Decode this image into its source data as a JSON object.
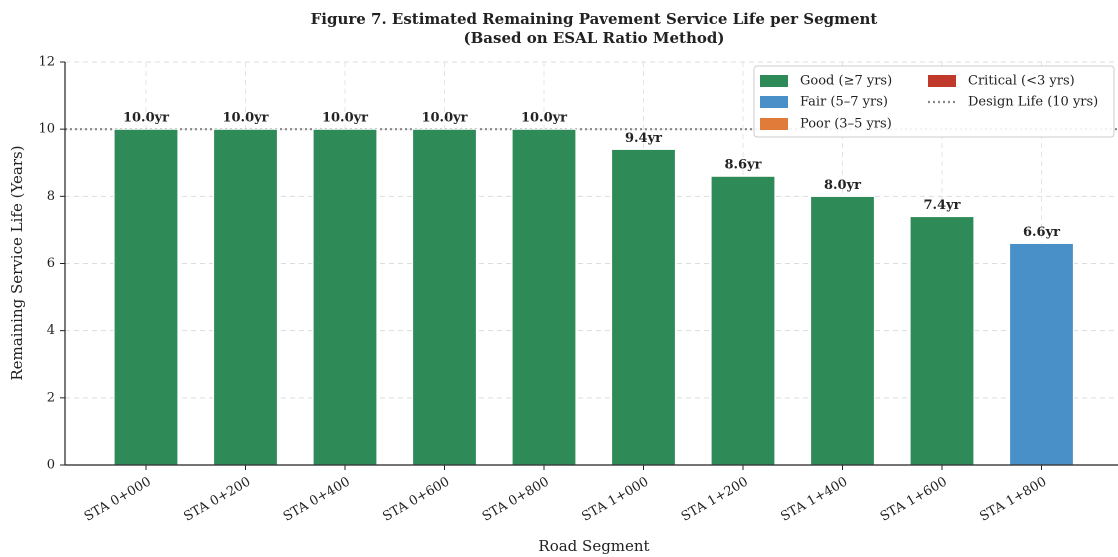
{
  "chart_data": {
    "type": "bar",
    "title": "Figure 7. Estimated Remaining Pavement Service Life per Segment",
    "subtitle": "(Based on ESAL Ratio Method)",
    "x_label": "Road Segment",
    "y_label": "Remaining Service Life (Years)",
    "categories": [
      "STA 0+000",
      "STA 0+200",
      "STA 0+400",
      "STA 0+600",
      "STA 0+800",
      "STA 1+000",
      "STA 1+200",
      "STA 1+400",
      "STA 1+600",
      "STA 1+800"
    ],
    "values": [
      10.0,
      10.0,
      10.0,
      10.0,
      10.0,
      9.4,
      8.6,
      8.0,
      7.4,
      6.6
    ],
    "value_labels": [
      "10.0yr",
      "10.0yr",
      "10.0yr",
      "10.0yr",
      "10.0yr",
      "9.4yr",
      "8.6yr",
      "8.0yr",
      "7.4yr",
      "6.6yr"
    ],
    "colors": [
      "#2e8b57",
      "#2e8b57",
      "#2e8b57",
      "#2e8b57",
      "#2e8b57",
      "#2e8b57",
      "#2e8b57",
      "#2e8b57",
      "#2e8b57",
      "#4a90c8"
    ],
    "ylim": [
      0,
      12
    ],
    "yticks": [
      0,
      2,
      4,
      6,
      8,
      10,
      12
    ],
    "grid": true,
    "legend_position": "upper right",
    "legend": [
      {
        "name": "Good (≥7 yrs)",
        "color": "#2e8b57"
      },
      {
        "name": "Fair (5–7 yrs)",
        "color": "#4a90c8"
      },
      {
        "name": "Poor (3–5 yrs)",
        "color": "#e07b39"
      },
      {
        "name": "Critical (<3 yrs)",
        "color": "#c0392b"
      }
    ],
    "reference_line": {
      "value": 10,
      "label": "Design Life (10 yrs)",
      "color": "#888888"
    }
  }
}
